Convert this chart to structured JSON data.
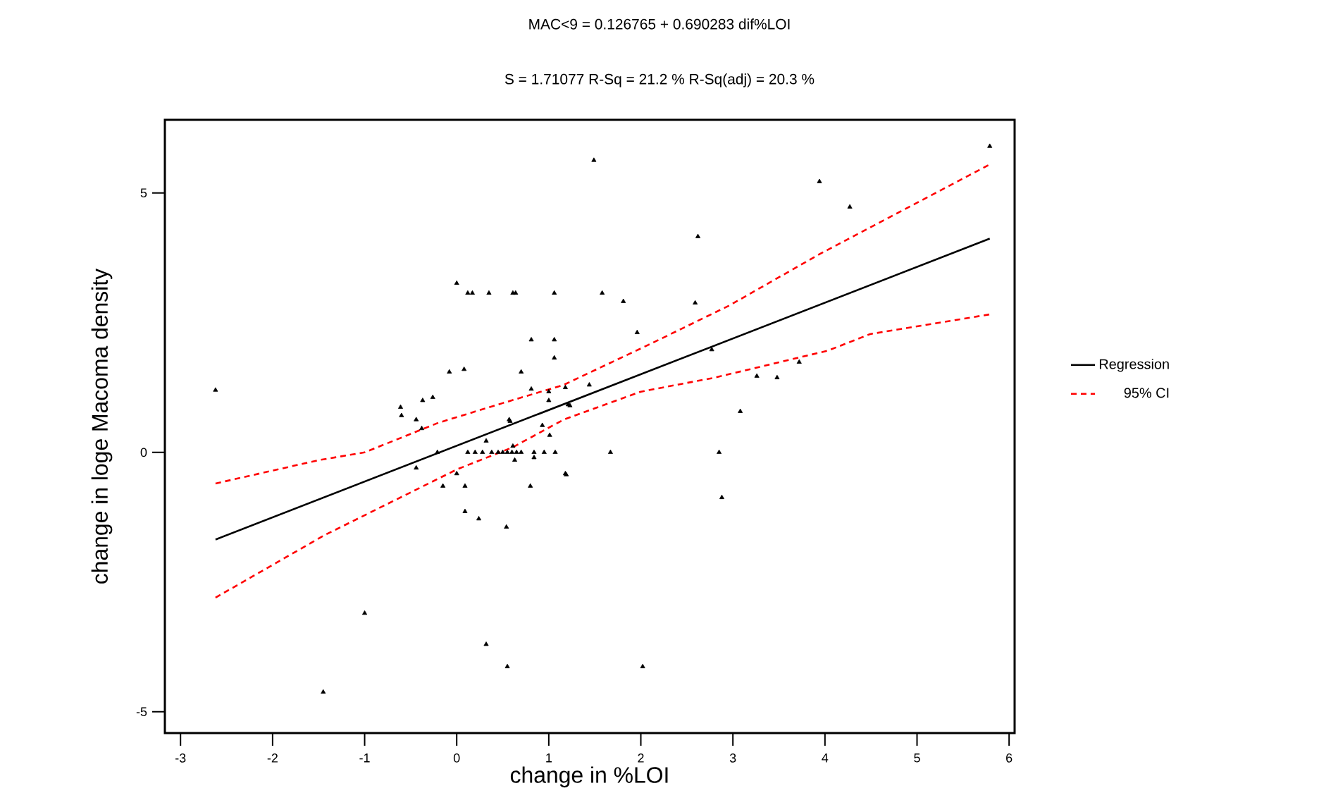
{
  "chart_data": {
    "type": "scatter",
    "title": "MAC<9 = 0.126765 + 0.690283 dif%LOI",
    "subtitle": "S = 1.71077      R-Sq = 21.2 %      R-Sq(adj) = 20.3 %",
    "xlabel": "change in %LOI",
    "ylabel": "change in loge Macoma density",
    "xlim": [
      -3.17,
      6.06
    ],
    "ylim": [
      -5.41,
      6.41
    ],
    "xticks": [
      -3,
      -2,
      -1,
      0,
      1,
      2,
      3,
      4,
      5,
      6
    ],
    "yticks": [
      -5,
      0,
      5
    ],
    "grid": false,
    "legend": "right",
    "series": [
      {
        "color": "#000000",
        "marker": "triangle",
        "x": [
          -2.62,
          -1.45,
          -1.0,
          -0.61,
          -0.6,
          -0.44,
          -0.37,
          -0.26,
          -0.08,
          0.08,
          0.0,
          0.12,
          0.17,
          0.35,
          0.61,
          0.64,
          1.06,
          0.81,
          1.06,
          1.06,
          0.7,
          0.81,
          1.0,
          1.18,
          1.0,
          0.57,
          1.23,
          1.49,
          2.62,
          3.94,
          4.27,
          5.79,
          1.58,
          1.81,
          2.59,
          1.96,
          2.77,
          1.44,
          3.26,
          3.48,
          3.72,
          3.08,
          1.21,
          1.67,
          2.85,
          1.19,
          2.88,
          2.02,
          -0.38,
          -0.44,
          -0.21,
          -0.15,
          0.0,
          0.09,
          0.09,
          0.24,
          0.32,
          0.32,
          0.54,
          0.55,
          0.58,
          0.8,
          1.18,
          0.93,
          1.01,
          0.12,
          0.2,
          0.28,
          0.38,
          0.45,
          0.5,
          0.55,
          0.6,
          0.65,
          0.7,
          0.63,
          0.61,
          0.84,
          0.84,
          0.95,
          1.07
        ],
        "values": [
          1.2,
          -4.62,
          -3.1,
          0.87,
          0.71,
          0.63,
          1.0,
          1.06,
          1.55,
          1.6,
          3.26,
          3.07,
          3.07,
          3.07,
          3.07,
          3.07,
          3.07,
          2.17,
          2.17,
          1.82,
          1.55,
          1.22,
          1.17,
          1.25,
          1.0,
          0.63,
          0.9,
          5.63,
          4.16,
          5.22,
          4.73,
          5.9,
          3.07,
          2.91,
          2.88,
          2.31,
          1.98,
          1.3,
          1.47,
          1.44,
          1.74,
          0.79,
          0.92,
          0.0,
          0.0,
          -0.43,
          -0.87,
          -4.13,
          0.46,
          -0.3,
          0.0,
          -0.65,
          -0.41,
          -0.65,
          -1.14,
          -1.28,
          0.22,
          -3.7,
          -1.44,
          -4.13,
          0.6,
          -0.65,
          -0.41,
          0.52,
          0.33,
          0.0,
          0.0,
          0.0,
          0.0,
          0.0,
          0.0,
          0.0,
          0.0,
          0.0,
          0.0,
          -0.15,
          0.12,
          0.0,
          -0.1,
          0.0,
          0.0
        ]
      },
      {
        "type": "line",
        "name": "Regression",
        "color": "#000000",
        "line_style": "solid",
        "x": [
          -2.62,
          5.79
        ],
        "values": [
          -1.68,
          4.12
        ]
      },
      {
        "type": "line",
        "name": "95% CI",
        "color": "#ff0000",
        "line_style": "dashed",
        "x": [
          -2.62,
          -1.5,
          -1.0,
          -0.2,
          0.5,
          1.16,
          2.08,
          2.96,
          3.95,
          5.79
        ],
        "values": [
          -0.6,
          -0.15,
          0.0,
          0.57,
          0.95,
          1.3,
          2.07,
          2.83,
          3.83,
          5.55
        ]
      },
      {
        "type": "line",
        "color": "#ff0000",
        "line_style": "dashed",
        "x": [
          -2.62,
          -1.44,
          0.0,
          0.61,
          1.16,
          2.0,
          2.8,
          4.03,
          4.49,
          5.79
        ],
        "values": [
          -2.8,
          -1.6,
          -0.33,
          0.1,
          0.63,
          1.17,
          1.44,
          1.96,
          2.28,
          2.66
        ]
      }
    ]
  }
}
